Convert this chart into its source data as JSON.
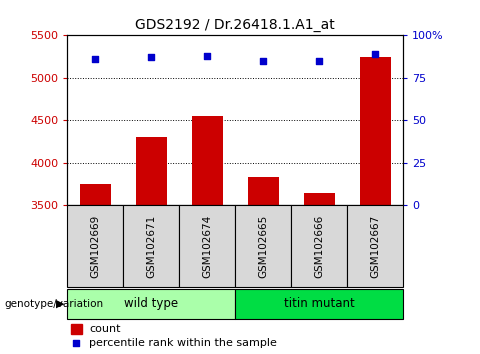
{
  "title": "GDS2192 / Dr.26418.1.A1_at",
  "samples": [
    "GSM102669",
    "GSM102671",
    "GSM102674",
    "GSM102665",
    "GSM102666",
    "GSM102667"
  ],
  "counts": [
    3750,
    4300,
    4555,
    3830,
    3650,
    5250
  ],
  "percentile_ranks": [
    86,
    87,
    88,
    85,
    85,
    89
  ],
  "ylim_left": [
    3500,
    5500
  ],
  "ylim_right": [
    0,
    100
  ],
  "yticks_left": [
    3500,
    4000,
    4500,
    5000,
    5500
  ],
  "yticks_right": [
    0,
    25,
    50,
    75,
    100
  ],
  "ytick_labels_right": [
    "0",
    "25",
    "50",
    "75",
    "100%"
  ],
  "bar_color": "#cc0000",
  "scatter_color": "#0000cc",
  "groups": [
    {
      "label": "wild type",
      "indices": [
        0,
        1,
        2
      ],
      "color": "#aaffaa"
    },
    {
      "label": "titin mutant",
      "indices": [
        3,
        4,
        5
      ],
      "color": "#00dd44"
    }
  ],
  "group_label": "genotype/variation",
  "legend_count_label": "count",
  "legend_pct_label": "percentile rank within the sample",
  "grid_color": "black",
  "sample_box_color": "#d8d8d8",
  "plot_bg": "white"
}
